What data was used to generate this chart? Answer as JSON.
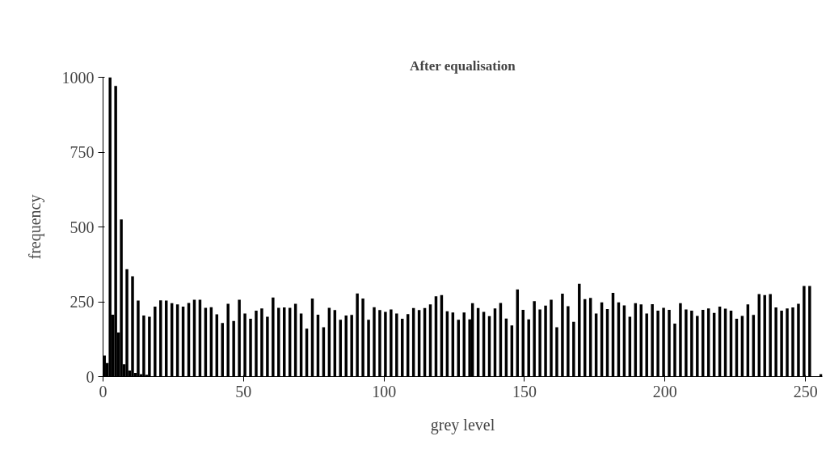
{
  "chart_data": {
    "type": "histogram",
    "title": "After equalisation",
    "xlabel": "grey level",
    "ylabel": "frequency",
    "color": "#000000",
    "bins": [
      0,
      1,
      2,
      3,
      4,
      5,
      6,
      7,
      8,
      9,
      10,
      11,
      12,
      13,
      14,
      15,
      16,
      17,
      18,
      19,
      20,
      21,
      22,
      23,
      24,
      25,
      26,
      27,
      28,
      29,
      30,
      31,
      32,
      33,
      34,
      35,
      36,
      37,
      38,
      39,
      40,
      41,
      42,
      43,
      44,
      45,
      46,
      47,
      48,
      49,
      50,
      51,
      52,
      53,
      54,
      55,
      56,
      57,
      58,
      59,
      60,
      61,
      62,
      63,
      64,
      65,
      66,
      67,
      68,
      69,
      70,
      71,
      72,
      73,
      74,
      75,
      76,
      77,
      78,
      79,
      80,
      81,
      82,
      83,
      84,
      85,
      86,
      87,
      88,
      89,
      90,
      91,
      92,
      93,
      94,
      95,
      96,
      97,
      98,
      99,
      100,
      101,
      102,
      103,
      104,
      105,
      106,
      107,
      108,
      109,
      110,
      111,
      112,
      113,
      114,
      115,
      116,
      117,
      118,
      119,
      120,
      121,
      122,
      123,
      124,
      125,
      126,
      127,
      128,
      129,
      130,
      131,
      132,
      133,
      134,
      135,
      136,
      137,
      138,
      139,
      140,
      141,
      142,
      143,
      144,
      145,
      146,
      147,
      148,
      149,
      150,
      151,
      152,
      153,
      154,
      155,
      156,
      157,
      158,
      159,
      160,
      161,
      162,
      163,
      164,
      165,
      166,
      167,
      168,
      169,
      170,
      171,
      172,
      173,
      174,
      175,
      176,
      177,
      178,
      179,
      180,
      181,
      182,
      183,
      184,
      185,
      186,
      187,
      188,
      189,
      190,
      191,
      192,
      193,
      194,
      195,
      196,
      197,
      198,
      199,
      200,
      201,
      202,
      203,
      204,
      205,
      206,
      207,
      208,
      209,
      210,
      211,
      212,
      213,
      214,
      215,
      216,
      217,
      218,
      219,
      220,
      221,
      222,
      223,
      224,
      225,
      226,
      227,
      228,
      229,
      230,
      231,
      232,
      233,
      234,
      235,
      236,
      237,
      238,
      239,
      240,
      241,
      242,
      243,
      244,
      245,
      246,
      247,
      248,
      249,
      250,
      251,
      252,
      253,
      254,
      255,
      256
    ],
    "values": [
      70,
      45,
      1000,
      207,
      971,
      147,
      525,
      41,
      359,
      20,
      335,
      12,
      254,
      8,
      204,
      6,
      200,
      null,
      234,
      null,
      255,
      null,
      254,
      0,
      245,
      0,
      241,
      0,
      234,
      0,
      246,
      0,
      257,
      0,
      257,
      0,
      230,
      0,
      232,
      0,
      208,
      0,
      179,
      0,
      243,
      0,
      186,
      0,
      257,
      0,
      211,
      0,
      193,
      0,
      220,
      0,
      228,
      0,
      200,
      0,
      264,
      0,
      230,
      0,
      231,
      0,
      230,
      0,
      243,
      0,
      211,
      0,
      160,
      0,
      261,
      0,
      207,
      0,
      165,
      0,
      230,
      0,
      222,
      0,
      190,
      0,
      204,
      0,
      206,
      0,
      278,
      0,
      261,
      0,
      190,
      0,
      232,
      0,
      222,
      0,
      216,
      0,
      224,
      0,
      211,
      0,
      193,
      0,
      209,
      0,
      229,
      0,
      222,
      0,
      229,
      0,
      241,
      0,
      268,
      0,
      272,
      0,
      218,
      0,
      214,
      0,
      190,
      0,
      214,
      0,
      191,
      245,
      0,
      229,
      0,
      216,
      0,
      202,
      0,
      228,
      0,
      246,
      0,
      194,
      0,
      171,
      0,
      291,
      0,
      223,
      0,
      191,
      0,
      252,
      0,
      224,
      0,
      237,
      0,
      257,
      0,
      165,
      0,
      277,
      0,
      235,
      0,
      183,
      0,
      310,
      0,
      259,
      0,
      263,
      0,
      211,
      0,
      248,
      0,
      226,
      0,
      280,
      0,
      248,
      0,
      238,
      0,
      200,
      0,
      245,
      0,
      241,
      0,
      211,
      0,
      242,
      0,
      220,
      0,
      230,
      0,
      223,
      0,
      177,
      0,
      245,
      0,
      224,
      0,
      220,
      0,
      203,
      0,
      223,
      0,
      228,
      0,
      213,
      0,
      234,
      0,
      227,
      0,
      220,
      0,
      193,
      0,
      203,
      0,
      241,
      0,
      206,
      0,
      276,
      0,
      272,
      0,
      276,
      0,
      231,
      0,
      220,
      0,
      228,
      0,
      231,
      0,
      243,
      0,
      303,
      0,
      303,
      0,
      0,
      0,
      8
    ],
    "xlim": [
      0,
      256
    ],
    "xticks": [
      0,
      50,
      100,
      150,
      200,
      250
    ],
    "ylim": [
      0,
      1000
    ],
    "yticks": [
      0,
      250,
      500,
      750,
      1000
    ],
    "grid": false
  }
}
